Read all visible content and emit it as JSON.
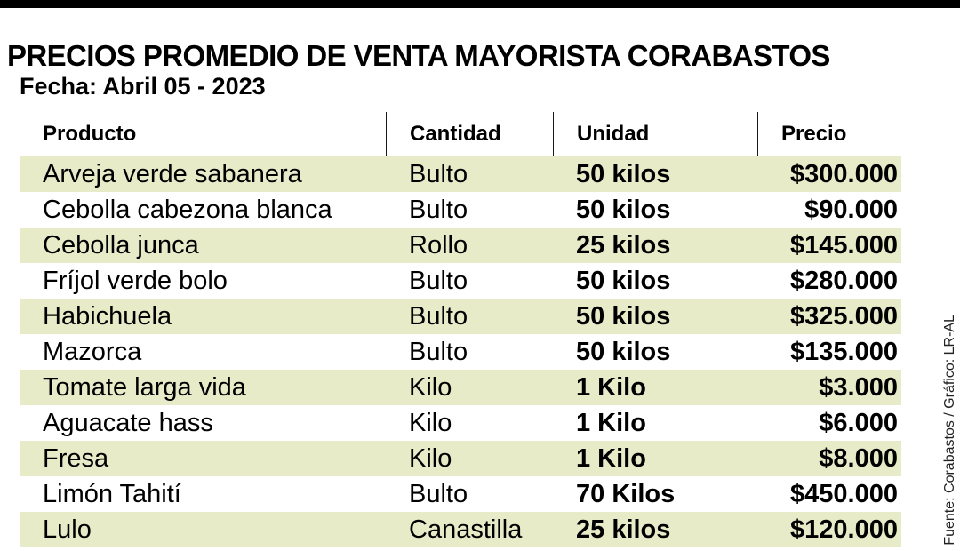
{
  "colors": {
    "top_bar": "#000000",
    "row_shade": "#e7ebc8",
    "text": "#000000"
  },
  "chart_data": {
    "type": "table",
    "title": "PRECIOS PROMEDIO DE VENTA MAYORISTA CORABASTOS",
    "subtitle": "Fecha: Abril 05 - 2023",
    "columns": [
      "Producto",
      "Cantidad",
      "Unidad",
      "Precio"
    ],
    "rows": [
      [
        "Arveja verde sabanera",
        "Bulto",
        "50 kilos",
        "$300.000"
      ],
      [
        "Cebolla cabezona blanca",
        "Bulto",
        "50 kilos",
        "$90.000"
      ],
      [
        "Cebolla junca",
        "Rollo",
        "25 kilos",
        "$145.000"
      ],
      [
        "Fríjol verde bolo",
        "Bulto",
        "50 kilos",
        "$280.000"
      ],
      [
        "Habichuela",
        "Bulto",
        "50 kilos",
        "$325.000"
      ],
      [
        "Mazorca",
        "Bulto",
        "50 kilos",
        "$135.000"
      ],
      [
        "Tomate larga vida",
        "Kilo",
        "1 Kilo",
        "$3.000"
      ],
      [
        "Aguacate hass",
        "Kilo",
        "1 Kilo",
        "$6.000"
      ],
      [
        "Fresa",
        "Kilo",
        "1 Kilo",
        "$8.000"
      ],
      [
        "Limón Tahití",
        "Bulto",
        "70 Kilos",
        "$450.000"
      ],
      [
        "Lulo",
        "Canastilla",
        "25 kilos",
        "$120.000"
      ]
    ],
    "source": "Fuente: Corabastos / Gráfico: LR-AL",
    "layout_hints": {
      "row_striping": "first row shaded, alternating",
      "price_alignment": "right",
      "header_dividers": true
    }
  }
}
